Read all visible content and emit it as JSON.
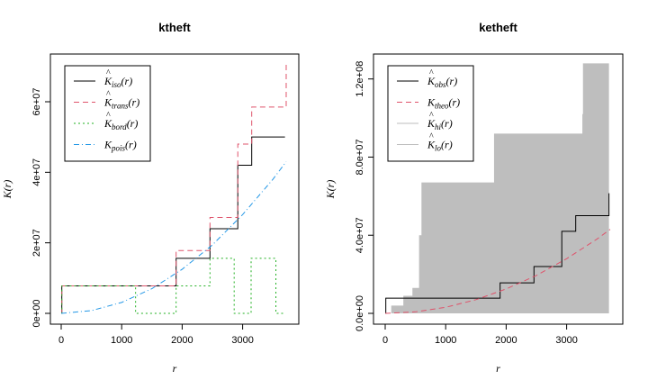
{
  "chart_data": [
    {
      "id": "ktheft",
      "type": "line",
      "title": "ktheft",
      "xlabel": "r",
      "ylabel": "K(r)",
      "xlim": [
        0,
        3750
      ],
      "ylim": [
        0,
        72000000
      ],
      "xticks": [
        "0",
        "1000",
        "2000",
        "3000"
      ],
      "xtick_values": [
        0,
        1000,
        2000,
        3000
      ],
      "yticks": [
        "0e+00",
        "2e+07",
        "4e+07",
        "6e+07"
      ],
      "ytick_values": [
        0,
        20000000,
        40000000,
        60000000
      ],
      "legend_position": "top-left",
      "series": [
        {
          "name": "K̂iso(r)",
          "legend_main": "K",
          "legend_sub": "iso",
          "color": "#000000",
          "dash": "",
          "step": true,
          "x": [
            0,
            10,
            1900,
            2460,
            2920,
            3150,
            3700
          ],
          "y": [
            0,
            7800000,
            15600000,
            24000000,
            42000000,
            50000000,
            50000000
          ]
        },
        {
          "name": "K̂trans(r)",
          "legend_main": "K",
          "legend_sub": "trans",
          "color": "#DF536B",
          "dash": "6,4",
          "step": true,
          "x": [
            0,
            10,
            1900,
            2460,
            2920,
            3150,
            3700,
            3720
          ],
          "y": [
            0,
            7800000,
            17800000,
            27200000,
            48000000,
            58500000,
            58500000,
            71500000
          ]
        },
        {
          "name": "K̂bord(r)",
          "legend_main": "K",
          "legend_sub": "bord",
          "color": "#22B022",
          "dash": "2,3",
          "step": true,
          "x": [
            0,
            10,
            1230,
            1270,
            1900,
            2460,
            2860,
            2940,
            3140,
            3160,
            3550,
            3600,
            3700
          ],
          "y": [
            0,
            7800000,
            0,
            0,
            7800000,
            15600000,
            0,
            0,
            15600000,
            15600000,
            0,
            0,
            0
          ]
        },
        {
          "name": "Kpois(r)",
          "legend_main": "K",
          "legend_sub": "pois",
          "color": "#2297E6",
          "dash": "6,3,1,3",
          "step": false,
          "smooth_curve": "pi*lambda*r^2",
          "x": [
            0,
            500,
            1000,
            1500,
            2000,
            2500,
            3000,
            3500,
            3720
          ],
          "y": [
            0,
            780000,
            3100000,
            7000000,
            12500000,
            19400000,
            28000000,
            38000000,
            43000000
          ]
        }
      ]
    },
    {
      "id": "ketheft",
      "type": "area",
      "title": "ketheft",
      "xlabel": "r",
      "ylabel": "K(r)",
      "xlim": [
        0,
        3750
      ],
      "ylim": [
        0,
        130000000
      ],
      "xticks": [
        "0",
        "1000",
        "2000",
        "3000"
      ],
      "xtick_values": [
        0,
        1000,
        2000,
        3000
      ],
      "yticks": [
        "0.0e+00",
        "4.0e+07",
        "8.0e+07",
        "1.2e+08"
      ],
      "ytick_values": [
        0,
        40000000,
        80000000,
        120000000
      ],
      "legend_position": "top-left",
      "envelope": {
        "name_hi": "K̂hi(r)",
        "name_lo": "K̂lo(r)",
        "legend_hi_sub": "hi",
        "legend_lo_sub": "lo",
        "color": "#BEBEBE",
        "hi_x": [
          100,
          300,
          450,
          560,
          600,
          700,
          1000,
          1780,
          1800,
          3200,
          3260,
          3270,
          3700
        ],
        "hi_y": [
          4000000,
          9000000,
          13000000,
          40000000,
          67000000,
          67000000,
          67000000,
          67000000,
          92000000,
          92000000,
          102000000,
          128000000,
          128000000
        ],
        "lo_value": 0
      },
      "series": [
        {
          "name": "K̂obs(r)",
          "legend_main": "K",
          "legend_sub": "obs",
          "color": "#000000",
          "dash": "",
          "step": true,
          "x": [
            0,
            10,
            1900,
            2460,
            2920,
            3150,
            3700
          ],
          "y": [
            0,
            7800000,
            15600000,
            24000000,
            42000000,
            50000000,
            61500000
          ]
        },
        {
          "name": "Ktheo(r)",
          "legend_main": "K",
          "legend_sub": "theo",
          "color": "#DF536B",
          "dash": "6,4",
          "step": false,
          "x": [
            0,
            500,
            1000,
            1500,
            2000,
            2500,
            3000,
            3500,
            3720
          ],
          "y": [
            0,
            780000,
            3100000,
            7000000,
            12500000,
            19400000,
            28000000,
            38000000,
            43000000
          ]
        }
      ]
    }
  ]
}
